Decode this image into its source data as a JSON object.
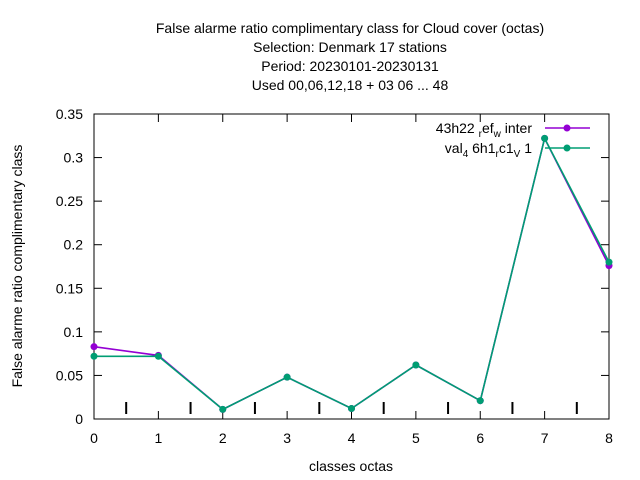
{
  "chart_data": {
    "type": "line",
    "title_lines": [
      "False alarme ratio complimentary class  for Cloud cover (octas)",
      "Selection: Denmark     17 stations",
      "Period: 20230101-20230131",
      "Used  00,06,12,18  + 03 06 ... 48"
    ],
    "xlabel": "classes octas",
    "ylabel": "False alarme ratio complimentary class",
    "xlim": [
      0,
      8
    ],
    "ylim": [
      0,
      0.35
    ],
    "x_ticks": [
      "0",
      "1",
      "2",
      "3",
      "4",
      "5",
      "6",
      "7",
      "8"
    ],
    "y_ticks": [
      "0",
      "0.05",
      "0.1",
      "0.15",
      "0.2",
      "0.25",
      "0.3",
      "0.35"
    ],
    "minor_x_marks": [
      0.5,
      1.5,
      2.5,
      3.5,
      4.5,
      5.5,
      6.5,
      7.5
    ],
    "grid": false,
    "legend_position": "top-right",
    "series": [
      {
        "name": "43h22 ref_w inter",
        "legend_parts": [
          {
            "t": "43h22 "
          },
          {
            "t": "r",
            "sub": true
          },
          {
            "t": "ef"
          },
          {
            "t": "w",
            "sub": true
          },
          {
            "t": " inter"
          }
        ],
        "color": "#9400d3",
        "x": [
          0,
          1,
          2,
          3,
          4,
          5,
          6,
          7,
          8
        ],
        "values": [
          0.083,
          0.073,
          0.011,
          0.048,
          0.012,
          0.062,
          0.021,
          0.322,
          0.176
        ]
      },
      {
        "name": "val_4 6h1_r c1_V 1",
        "legend_parts": [
          {
            "t": "val"
          },
          {
            "t": "4",
            "sub": true
          },
          {
            "t": " 6h1"
          },
          {
            "t": "r",
            "sub": true
          },
          {
            "t": "c1"
          },
          {
            "t": "V",
            "sub": true
          },
          {
            "t": " 1"
          }
        ],
        "color": "#009e73",
        "x": [
          0,
          1,
          2,
          3,
          4,
          5,
          6,
          7,
          8
        ],
        "values": [
          0.072,
          0.072,
          0.011,
          0.048,
          0.012,
          0.062,
          0.021,
          0.322,
          0.18
        ]
      }
    ]
  }
}
